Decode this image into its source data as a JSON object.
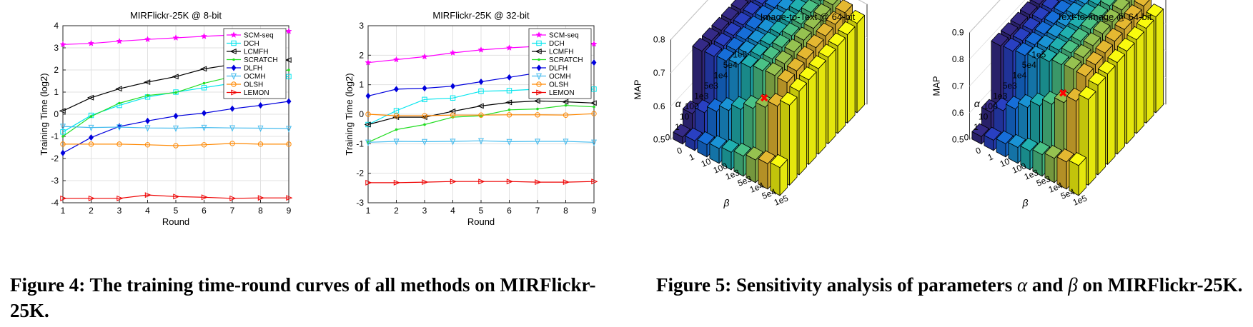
{
  "colors": {
    "background": "#ffffff",
    "text": "#000000",
    "red_marker": "#ff0000"
  },
  "figure4": {
    "caption": "Figure 4: The training time-round curves of all methods on MIRFlickr-25K."
  },
  "figure5": {
    "caption_parts": {
      "prefix": "Figure 5: Sensitivity analysis of parameters ",
      "alpha": "α",
      "middle": " and ",
      "beta": "β",
      "suffix": " on MIRFlickr-25K."
    }
  },
  "chart_data": [
    {
      "type": "line",
      "title": "MIRFlickr-25K @ 8-bit",
      "xlabel": "Round",
      "ylabel": "Training Time (log2)",
      "x": [
        1,
        2,
        3,
        4,
        5,
        6,
        7,
        8,
        9
      ],
      "xlim": [
        1,
        9
      ],
      "ylim": [
        -4,
        4
      ],
      "yticks": [
        -4,
        -3,
        -2,
        -1,
        0,
        1,
        2,
        3,
        4
      ],
      "grid": true,
      "legend_position": "top-right",
      "series": [
        {
          "name": "SCM-seq",
          "color": "#ff00ff",
          "marker": "star",
          "values": [
            3.15,
            3.2,
            3.3,
            3.38,
            3.45,
            3.52,
            3.58,
            3.65,
            3.75
          ]
        },
        {
          "name": "DCH",
          "color": "#00e5ee",
          "marker": "square",
          "values": [
            -0.8,
            -0.05,
            0.4,
            0.78,
            1.0,
            1.2,
            1.4,
            1.55,
            1.7
          ]
        },
        {
          "name": "LCMFH",
          "color": "#000000",
          "marker": "tri-left",
          "values": [
            0.15,
            0.75,
            1.15,
            1.45,
            1.7,
            2.05,
            2.25,
            2.4,
            2.45
          ]
        },
        {
          "name": "SCRATCH",
          "color": "#22dd22",
          "marker": "dot",
          "values": [
            -1.0,
            -0.1,
            0.5,
            0.85,
            0.98,
            1.4,
            1.7,
            1.85,
            2.0
          ]
        },
        {
          "name": "DLFH",
          "color": "#0000dd",
          "marker": "diamond",
          "values": [
            -1.75,
            -1.05,
            -0.55,
            -0.3,
            -0.08,
            0.05,
            0.25,
            0.4,
            0.58
          ]
        },
        {
          "name": "OCMH",
          "color": "#44bbee",
          "marker": "tri-down",
          "values": [
            -0.55,
            -0.6,
            -0.58,
            -0.62,
            -0.63,
            -0.6,
            -0.62,
            -0.63,
            -0.65
          ]
        },
        {
          "name": "OLSH",
          "color": "#ff8800",
          "marker": "circle",
          "values": [
            -1.35,
            -1.35,
            -1.35,
            -1.38,
            -1.42,
            -1.38,
            -1.32,
            -1.35,
            -1.35
          ]
        },
        {
          "name": "LEMON",
          "color": "#ee0000",
          "marker": "tri-right",
          "values": [
            -3.8,
            -3.8,
            -3.8,
            -3.65,
            -3.72,
            -3.75,
            -3.8,
            -3.78,
            -3.78
          ]
        }
      ]
    },
    {
      "type": "line",
      "title": "MIRFlickr-25K @ 32-bit",
      "xlabel": "Round",
      "ylabel": "Training Time (log2)",
      "x": [
        1,
        2,
        3,
        4,
        5,
        6,
        7,
        8,
        9
      ],
      "xlim": [
        1,
        9
      ],
      "ylim": [
        -3,
        3
      ],
      "yticks": [
        -3,
        -2,
        -1,
        0,
        1,
        2,
        3
      ],
      "grid": true,
      "legend_position": "top-right",
      "series": [
        {
          "name": "SCM-seq",
          "color": "#ff00ff",
          "marker": "star",
          "values": [
            1.75,
            1.85,
            1.95,
            2.08,
            2.18,
            2.25,
            2.3,
            2.35,
            2.38
          ]
        },
        {
          "name": "DCH",
          "color": "#00e5ee",
          "marker": "square",
          "values": [
            -0.35,
            0.12,
            0.5,
            0.55,
            0.78,
            0.8,
            0.85,
            0.85,
            0.85
          ]
        },
        {
          "name": "LCMFH",
          "color": "#000000",
          "marker": "tri-left",
          "values": [
            -0.35,
            -0.1,
            -0.1,
            0.1,
            0.28,
            0.4,
            0.45,
            0.42,
            0.38
          ]
        },
        {
          "name": "SCRATCH",
          "color": "#22dd22",
          "marker": "dot",
          "values": [
            -0.95,
            -0.52,
            -0.35,
            -0.1,
            -0.05,
            0.15,
            0.18,
            0.3,
            0.25
          ]
        },
        {
          "name": "DLFH",
          "color": "#0000dd",
          "marker": "diamond",
          "values": [
            0.62,
            0.85,
            0.88,
            0.95,
            1.1,
            1.25,
            1.4,
            1.55,
            1.75
          ]
        },
        {
          "name": "OCMH",
          "color": "#44bbee",
          "marker": "tri-down",
          "values": [
            -0.95,
            -0.92,
            -0.93,
            -0.92,
            -0.9,
            -0.93,
            -0.92,
            -0.92,
            -0.95
          ]
        },
        {
          "name": "OLSH",
          "color": "#ff8800",
          "marker": "circle",
          "values": [
            0.0,
            -0.05,
            -0.05,
            -0.03,
            -0.03,
            -0.02,
            -0.02,
            -0.03,
            0.02
          ]
        },
        {
          "name": "LEMON",
          "color": "#ee0000",
          "marker": "tri-right",
          "values": [
            -2.32,
            -2.32,
            -2.3,
            -2.28,
            -2.28,
            -2.28,
            -2.3,
            -2.3,
            -2.28
          ]
        }
      ]
    },
    {
      "type": "bar3d",
      "title": "Image-to-Text @ 64-bit",
      "xlabel": "β",
      "ylabel": "α",
      "zlabel": "MAP",
      "beta_ticks": [
        "0",
        "1",
        "10",
        "100",
        "1e3",
        "5e3",
        "1e4",
        "5e4",
        "1e5"
      ],
      "alpha_ticks": [
        "1e5",
        "5e4",
        "1e4",
        "5e3",
        "1e3",
        "100",
        "10",
        "1",
        "0"
      ],
      "zticks": [
        "0.5",
        "0.6",
        "0.7",
        "0.8"
      ],
      "zlim": [
        0.5,
        0.8
      ],
      "best_marker": {
        "alpha": "1",
        "beta": "1e4"
      }
    },
    {
      "type": "bar3d",
      "title": "Text-to-Image @ 64-bit",
      "xlabel": "β",
      "ylabel": "α",
      "zlabel": "MAP",
      "beta_ticks": [
        "0",
        "1",
        "10",
        "100",
        "1e3",
        "5e3",
        "1e4",
        "5e4",
        "1e5"
      ],
      "alpha_ticks": [
        "1e5",
        "5e4",
        "1e4",
        "5e3",
        "1e3",
        "100",
        "10",
        "1",
        "0"
      ],
      "zticks": [
        "0.5",
        "0.6",
        "0.7",
        "0.8",
        "0.9"
      ],
      "zlim": [
        0.5,
        0.9
      ],
      "best_marker": {
        "alpha": "1",
        "beta": "1e4"
      }
    }
  ]
}
